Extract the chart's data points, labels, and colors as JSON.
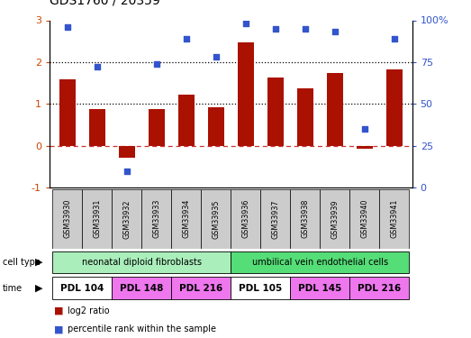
{
  "title": "GDS1760 / 20359",
  "samples": [
    "GSM33930",
    "GSM33931",
    "GSM33932",
    "GSM33933",
    "GSM33934",
    "GSM33935",
    "GSM33936",
    "GSM33937",
    "GSM33938",
    "GSM33939",
    "GSM33940",
    "GSM33941"
  ],
  "log2_ratio": [
    1.58,
    0.88,
    -0.28,
    0.88,
    1.22,
    0.93,
    2.47,
    1.63,
    1.38,
    1.73,
    -0.06,
    1.82
  ],
  "pct_rank": [
    96,
    72,
    10,
    74,
    89,
    78,
    98,
    95,
    95,
    93,
    35,
    89
  ],
  "bar_color": "#aa1100",
  "dot_color": "#3355cc",
  "left_tick_color": "#cc4400",
  "right_tick_color": "#3355cc",
  "cell_type_groups": [
    {
      "label": "neonatal diploid fibroblasts",
      "start": 0,
      "end": 6,
      "color": "#aaeebb"
    },
    {
      "label": "umbilical vein endothelial cells",
      "start": 6,
      "end": 12,
      "color": "#55dd77"
    }
  ],
  "time_groups": [
    {
      "label": "PDL 104",
      "start": 0,
      "end": 2,
      "color": "#ffffff"
    },
    {
      "label": "PDL 148",
      "start": 2,
      "end": 4,
      "color": "#ee77ee"
    },
    {
      "label": "PDL 216",
      "start": 4,
      "end": 6,
      "color": "#ee77ee"
    },
    {
      "label": "PDL 105",
      "start": 6,
      "end": 8,
      "color": "#ffffff"
    },
    {
      "label": "PDL 145",
      "start": 8,
      "end": 10,
      "color": "#ee77ee"
    },
    {
      "label": "PDL 216",
      "start": 10,
      "end": 12,
      "color": "#ee77ee"
    }
  ],
  "ylim_left": [
    -1,
    3
  ],
  "ylim_right": [
    0,
    100
  ],
  "yticks_left": [
    -1,
    0,
    1,
    2,
    3
  ],
  "yticks_right": [
    0,
    25,
    50,
    75,
    100
  ],
  "ytick_right_labels": [
    "0",
    "25",
    "50",
    "75",
    "100%"
  ],
  "legend_items": [
    {
      "label": "log2 ratio",
      "color": "#aa1100"
    },
    {
      "label": "percentile rank within the sample",
      "color": "#3355cc"
    }
  ],
  "background_color": "#ffffff",
  "zero_line_color": "#cc3333",
  "sample_box_color": "#cccccc",
  "label_fontsize": 7,
  "title_fontsize": 10,
  "dotted_line_y": [
    1,
    2
  ]
}
